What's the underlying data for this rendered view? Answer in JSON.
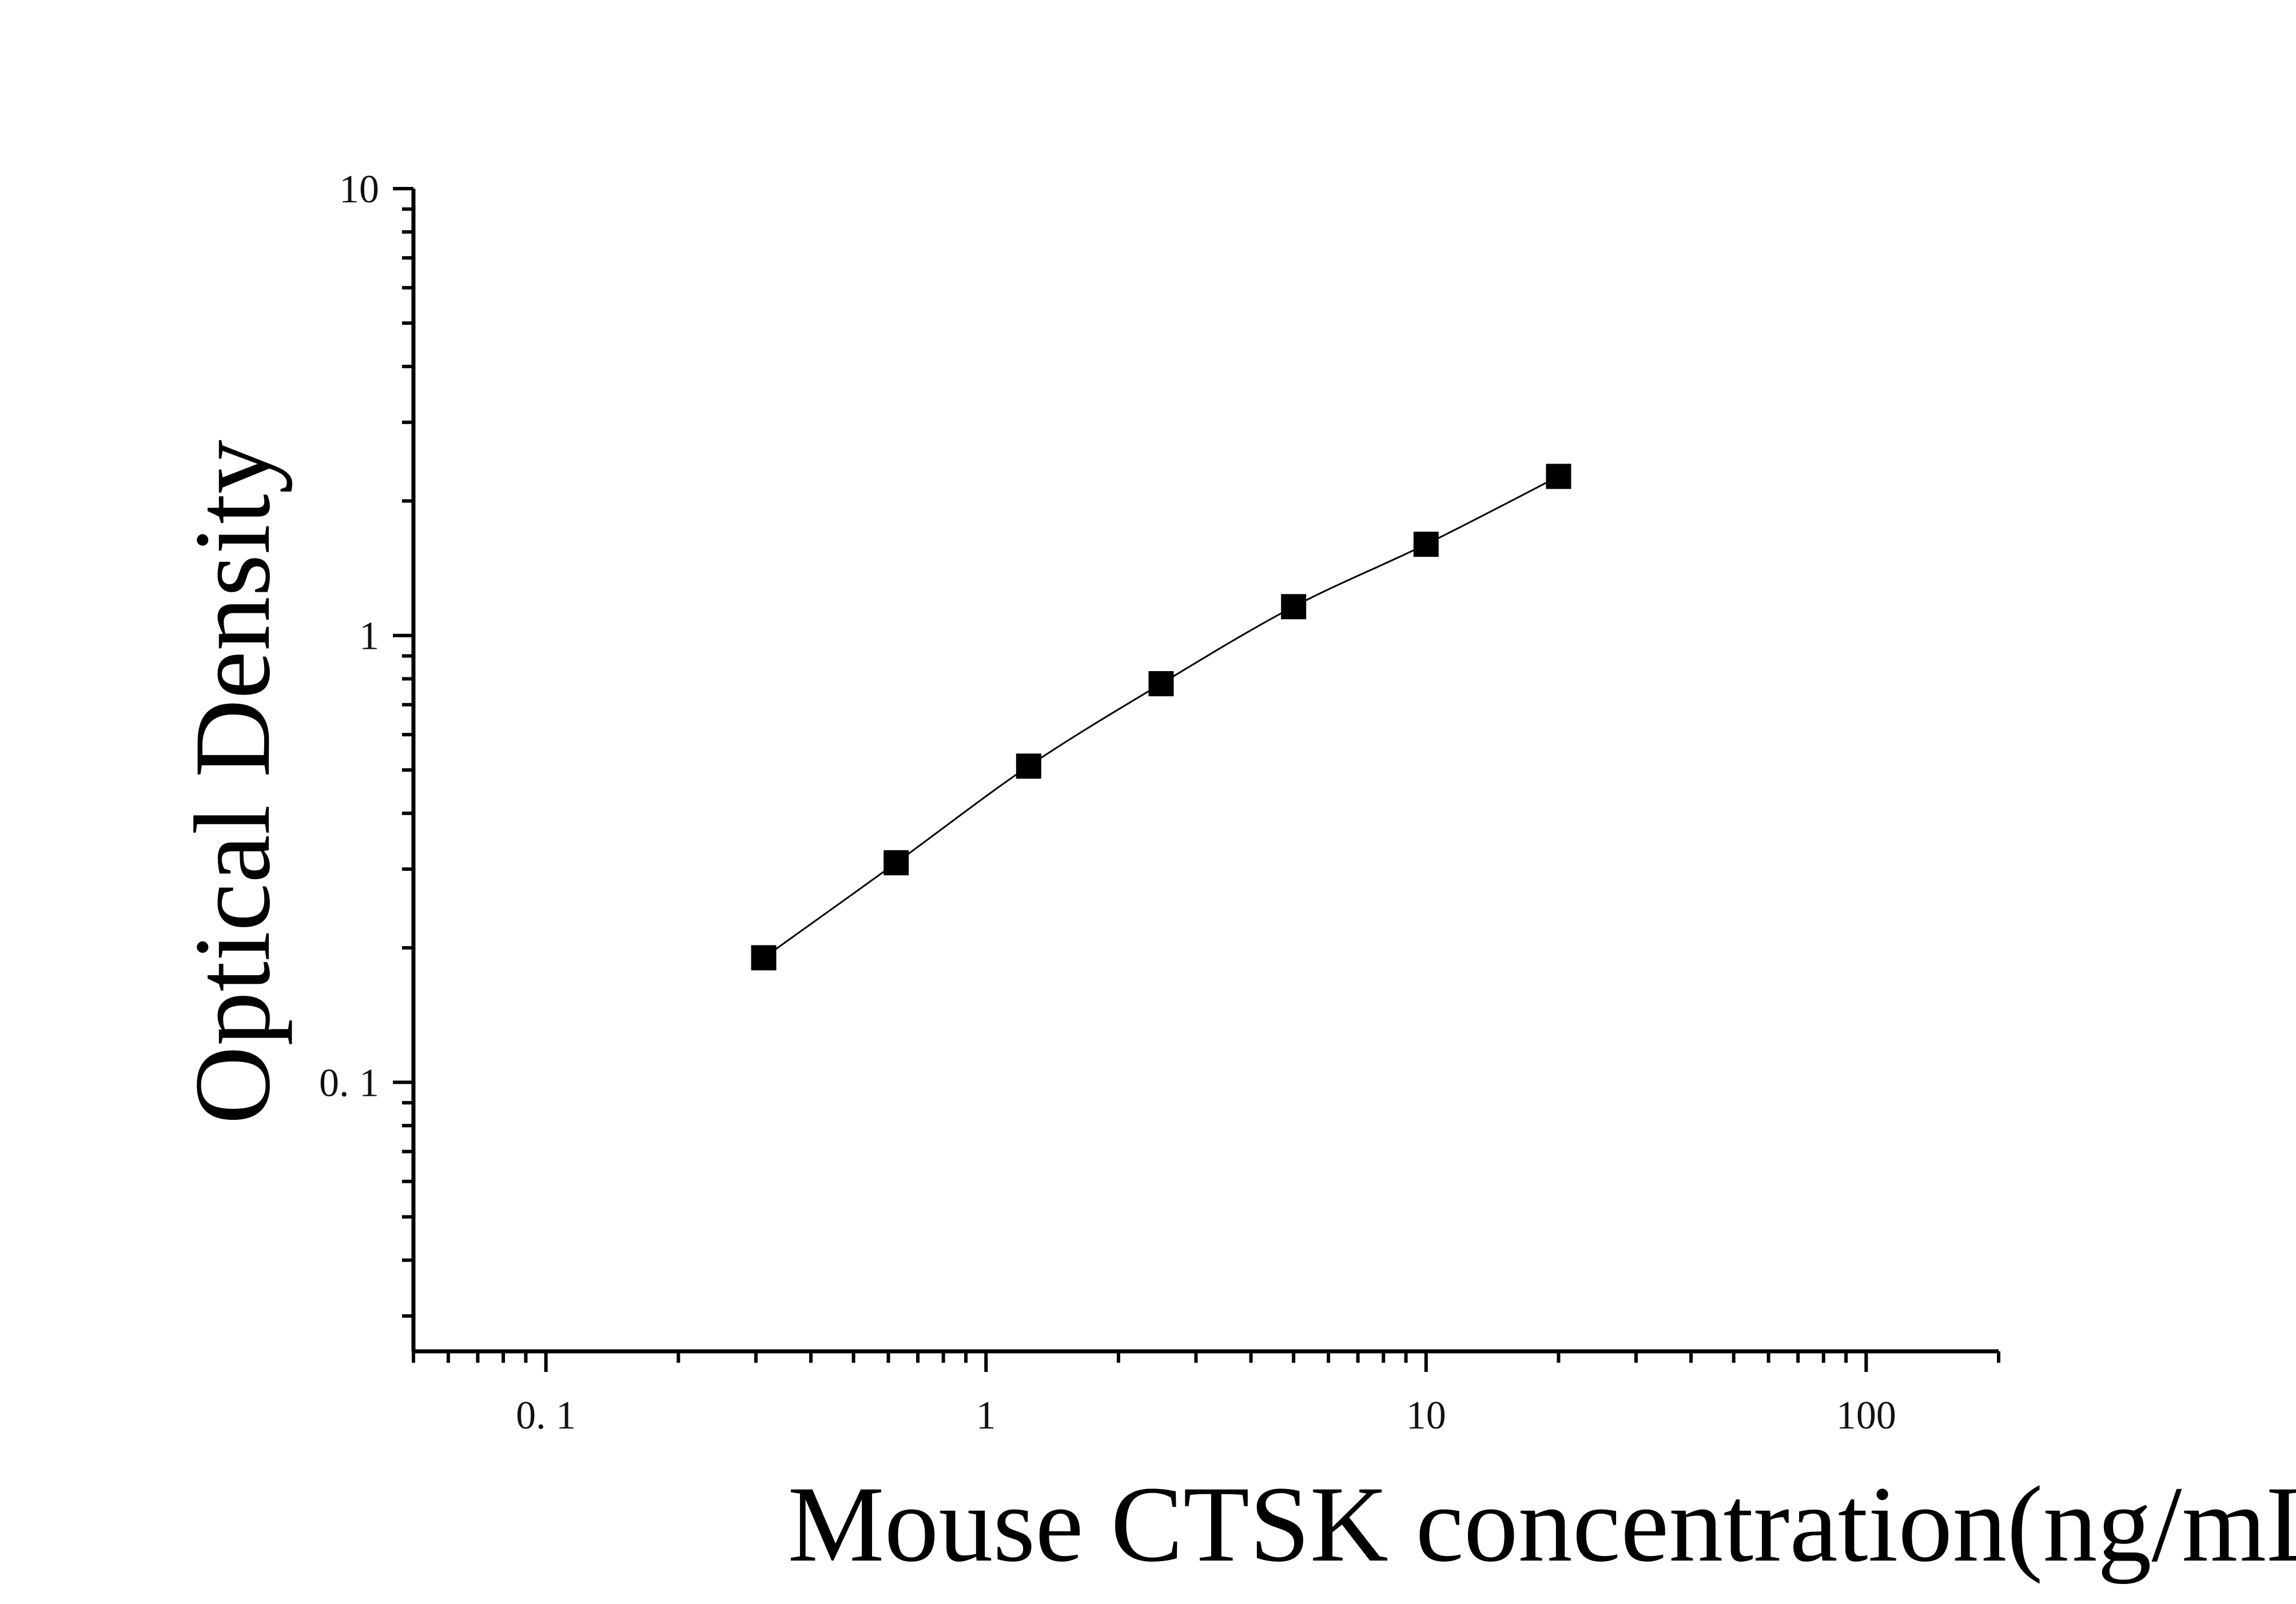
{
  "chart_data": {
    "type": "scatter",
    "xlabel": "Mouse CTSK concentration(ng/mL)",
    "ylabel": "Optical Density",
    "x_scale": "log",
    "y_scale": "log",
    "xlim": [
      0.05,
      200
    ],
    "ylim": [
      0.025,
      10
    ],
    "x_ticks": [
      {
        "value": 0.1,
        "label": "0. 1"
      },
      {
        "value": 1,
        "label": "1"
      },
      {
        "value": 10,
        "label": "10"
      },
      {
        "value": 100,
        "label": "100"
      }
    ],
    "y_ticks": [
      {
        "value": 0.1,
        "label": "0. 1"
      },
      {
        "value": 1,
        "label": "1"
      },
      {
        "value": 10,
        "label": "10"
      }
    ],
    "grid": false,
    "legend": "none",
    "series": [
      {
        "marker": "square",
        "fit_line": true,
        "color": "#000000",
        "x": [
          0.3125,
          0.625,
          1.25,
          2.5,
          5,
          10,
          20
        ],
        "y": [
          0.19,
          0.31,
          0.51,
          0.78,
          1.16,
          1.6,
          2.27
        ]
      }
    ]
  }
}
